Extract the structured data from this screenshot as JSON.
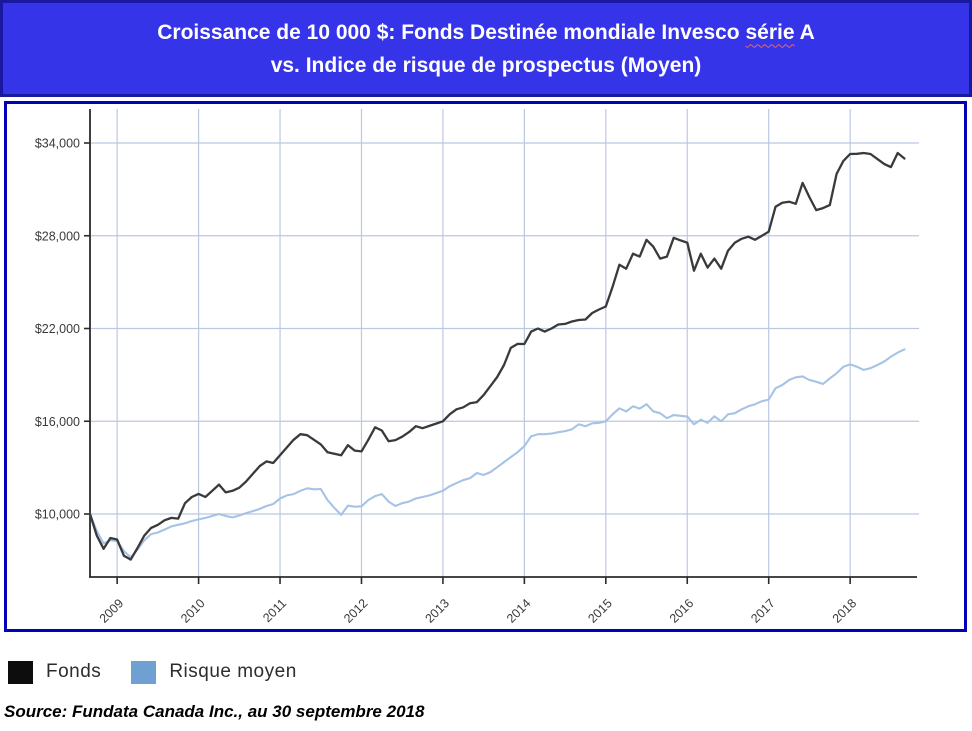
{
  "title": {
    "part1": "Croissance de 10 000 $: Fonds Destinée mondiale Invesco ",
    "wavy_word": "série",
    "part2": " A",
    "line2": "vs. Indice de risque de prospectus (Moyen)"
  },
  "legend": {
    "items": [
      {
        "label": "Fonds",
        "swatch_color": "#0d0d0d"
      },
      {
        "label": "Risque moyen",
        "swatch_color": "#6fa0d2"
      }
    ]
  },
  "source": {
    "text": "Source: Fundata Canada Inc., au 30 septembre 2018"
  },
  "colors": {
    "title_background": "#3634e8",
    "chart_border": "#0101b5",
    "gridline": "#bcc8e2",
    "axis": "#2b2b2b",
    "fund_line": "#3a3a3a",
    "risk_line": "#a6c3e6"
  },
  "chart_data": {
    "type": "line",
    "title": "Croissance de 10 000 $: Fonds Destinée mondiale Invesco série A vs. Indice de risque de prospectus (Moyen)",
    "x_start": "2008-09",
    "x_end": "2018-09",
    "frequency": "monthly",
    "grid": true,
    "legend_position": "bottom-left",
    "x_tick_labels": [
      "2009",
      "2010",
      "2011",
      "2012",
      "2013",
      "2014",
      "2015",
      "2016",
      "2017",
      "2018"
    ],
    "y_ticks": [
      10000,
      16000,
      22000,
      28000,
      34000
    ],
    "y_tick_labels": [
      "$10,000",
      "$16,000",
      "$22,000",
      "$28,000",
      "$34,000"
    ],
    "ylim": [
      5900,
      36200
    ],
    "series": [
      {
        "name": "Fonds",
        "color": "#3a3a3a",
        "stroke_width": 2.3,
        "values": [
          10000,
          8600,
          7750,
          8450,
          8350,
          7300,
          7050,
          7800,
          8600,
          9100,
          9300,
          9600,
          9750,
          9700,
          10700,
          11100,
          11300,
          11100,
          11500,
          11900,
          11400,
          11500,
          11700,
          12100,
          12600,
          13100,
          13400,
          13300,
          13800,
          14300,
          14800,
          15160,
          15100,
          14800,
          14500,
          14000,
          13900,
          13800,
          14450,
          14100,
          14050,
          14800,
          15610,
          15400,
          14710,
          14780,
          15000,
          15300,
          15680,
          15550,
          15700,
          15850,
          16000,
          16450,
          16770,
          16900,
          17170,
          17240,
          17690,
          18275,
          18860,
          19640,
          20745,
          21005,
          21000,
          21800,
          22000,
          21800,
          22000,
          22260,
          22300,
          22450,
          22550,
          22580,
          23000,
          23230,
          23420,
          24700,
          26130,
          25870,
          26840,
          26650,
          27740,
          27290,
          26520,
          26650,
          27870,
          27700,
          27550,
          25740,
          26840,
          25940,
          26520,
          25870,
          27030,
          27550,
          27800,
          27940,
          27740,
          28000,
          28260,
          29870,
          30130,
          30200,
          30070,
          31420,
          30500,
          29660,
          29790,
          29980,
          32000,
          32840,
          33290,
          33300,
          33350,
          33290,
          32970,
          32650,
          32440,
          33350,
          33000
        ]
      },
      {
        "name": "Risque moyen",
        "color": "#a6c3e6",
        "stroke_width": 2.1,
        "values": [
          10000,
          8900,
          8100,
          8300,
          8250,
          7600,
          7200,
          7700,
          8300,
          8700,
          8800,
          9000,
          9200,
          9300,
          9400,
          9550,
          9650,
          9750,
          9870,
          10000,
          9870,
          9780,
          9900,
          10060,
          10190,
          10330,
          10520,
          10650,
          11000,
          11200,
          11290,
          11500,
          11660,
          11600,
          11620,
          10900,
          10400,
          9940,
          10540,
          10470,
          10500,
          10900,
          11160,
          11290,
          10800,
          10520,
          10700,
          10800,
          11000,
          11100,
          11200,
          11350,
          11500,
          11800,
          12000,
          12190,
          12320,
          12650,
          12520,
          12710,
          13030,
          13360,
          13680,
          14000,
          14400,
          15030,
          15160,
          15160,
          15200,
          15290,
          15360,
          15480,
          15800,
          15680,
          15870,
          15900,
          16000,
          16450,
          16840,
          16640,
          16970,
          16820,
          17100,
          16640,
          16520,
          16200,
          16400,
          16350,
          16300,
          15800,
          16100,
          15900,
          16320,
          16000,
          16450,
          16520,
          16770,
          16970,
          17100,
          17300,
          17400,
          18130,
          18345,
          18670,
          18840,
          18900,
          18670,
          18560,
          18410,
          18775,
          19100,
          19530,
          19680,
          19530,
          19320,
          19430,
          19640,
          19860,
          20180,
          20440,
          20650
        ]
      }
    ]
  }
}
